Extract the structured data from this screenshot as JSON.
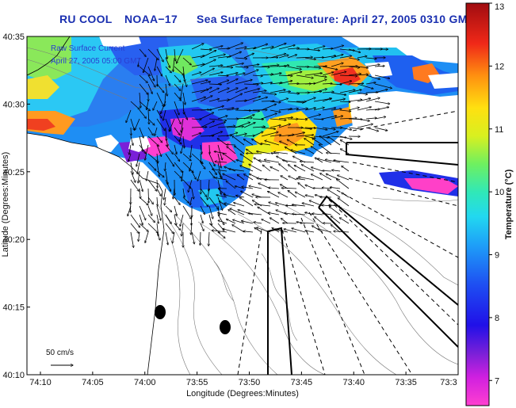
{
  "title": {
    "prefix": "RU COOL",
    "satellite": "NOAA−17",
    "text": "Sea Surface Temperature:  April 27, 2005 0310 GMT"
  },
  "legend": {
    "line1": "Raw Surface Current",
    "line2": "April 27, 2005 05:00 GMT"
  },
  "scale": {
    "label": "50 cm/s"
  },
  "chart_data": {
    "type": "heatmap",
    "title": "RU COOL NOAA−17 Sea Surface Temperature: April 27, 2005 0310 GMT",
    "xlabel": "Longitude (Degrees:Minutes)",
    "ylabel": "Latitude (Degrees:Minutes)",
    "colorbar_label": "Temperature (°C)",
    "x_ticks": [
      "74:10",
      "74:05",
      "74:00",
      "73:55",
      "73:50",
      "73:45",
      "73:40",
      "73:35",
      "73:3"
    ],
    "y_ticks": [
      "40:35",
      "40:30",
      "40:25",
      "40:20",
      "40:15",
      "40:10"
    ],
    "colorbar_ticks": [
      "13",
      "12",
      "11",
      "10",
      "9",
      "8",
      "7"
    ],
    "colorbar_range": [
      6.6,
      13
    ],
    "overlay": "surface current vectors",
    "accent_colors": {
      "title": "#1a2fb0",
      "land": "#ffffff",
      "vectors": "#000000"
    }
  }
}
